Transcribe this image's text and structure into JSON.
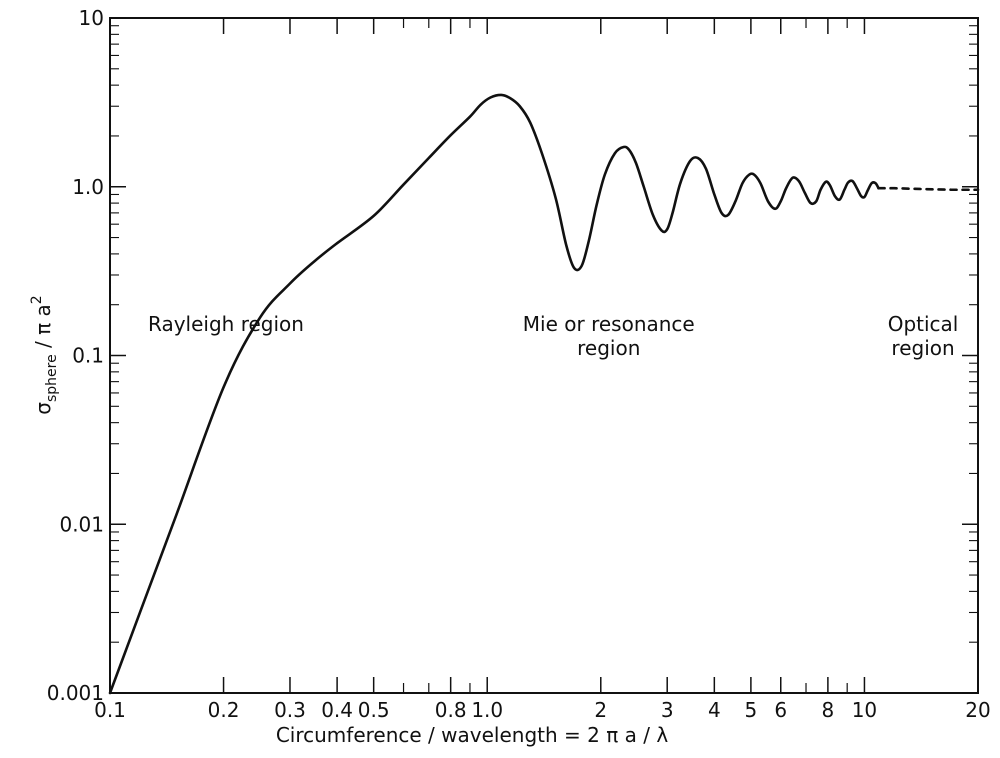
{
  "chart_data": {
    "type": "line",
    "title": "",
    "xlabel": "Circumference / wavelength = 2 π a / λ",
    "ylabel_main": "σ",
    "ylabel_sub": "sphere",
    "ylabel_rest": " / π a",
    "ylabel_sup": "2",
    "xscale": "log",
    "yscale": "log",
    "xlim": [
      0.1,
      20
    ],
    "ylim": [
      0.001,
      10
    ],
    "grid": false,
    "x_ticks": [
      {
        "value": 0.1,
        "label": "0.1"
      },
      {
        "value": 0.2,
        "label": "0.2"
      },
      {
        "value": 0.3,
        "label": "0.3"
      },
      {
        "value": 0.4,
        "label": "0.4"
      },
      {
        "value": 0.5,
        "label": "0.5"
      },
      {
        "value": 0.8,
        "label": "0.8"
      },
      {
        "value": 1.0,
        "label": "1.0"
      },
      {
        "value": 2,
        "label": "2"
      },
      {
        "value": 3,
        "label": "3"
      },
      {
        "value": 4,
        "label": "4"
      },
      {
        "value": 5,
        "label": "5"
      },
      {
        "value": 6,
        "label": "6"
      },
      {
        "value": 8,
        "label": "8"
      },
      {
        "value": 10,
        "label": "10"
      },
      {
        "value": 20,
        "label": "20"
      }
    ],
    "y_ticks": [
      {
        "value": 0.001,
        "label": "0.001"
      },
      {
        "value": 0.01,
        "label": "0.01"
      },
      {
        "value": 0.1,
        "label": "0.1"
      },
      {
        "value": 1.0,
        "label": "1.0"
      },
      {
        "value": 10,
        "label": "10"
      }
    ],
    "annotations": [
      {
        "lines": [
          "Rayleigh region"
        ],
        "x": 0.1,
        "y": 0.14,
        "anchor": "start"
      },
      {
        "lines": [
          "Mie or resonance",
          "region"
        ],
        "x": 2.1,
        "y": 0.14,
        "anchor": "middle"
      },
      {
        "lines": [
          "Optical",
          "region"
        ],
        "x": 14.3,
        "y": 0.14,
        "anchor": "middle"
      }
    ],
    "series": [
      {
        "style": "solid",
        "x": [
          0.1,
          0.12,
          0.15,
          0.2,
          0.25,
          0.3,
          0.35,
          0.4,
          0.5,
          0.6,
          0.7,
          0.8,
          0.9,
          0.96,
          1.02,
          1.09,
          1.15,
          1.22,
          1.3,
          1.4,
          1.52,
          1.62,
          1.7,
          1.78,
          1.86,
          1.95,
          2.05,
          2.18,
          2.3,
          2.38,
          2.48,
          2.6,
          2.75,
          2.9,
          3.0,
          3.1,
          3.25,
          3.45,
          3.62,
          3.8,
          4.0,
          4.18,
          4.35,
          4.55,
          4.75,
          4.95,
          5.1,
          5.3,
          5.55,
          5.8,
          6.0,
          6.2,
          6.45,
          6.7,
          6.95,
          7.2,
          7.45,
          7.65,
          7.9,
          8.1,
          8.35,
          8.6,
          8.85,
          9.05,
          9.3,
          9.55,
          9.8,
          10.0,
          10.2,
          10.45,
          10.7,
          10.9
        ],
        "y": [
          0.001,
          0.00299,
          0.0114,
          0.0648,
          0.168,
          0.267,
          0.365,
          0.463,
          0.672,
          1.03,
          1.48,
          2.02,
          2.6,
          3.06,
          3.38,
          3.5,
          3.35,
          3.0,
          2.4,
          1.55,
          0.85,
          0.45,
          0.33,
          0.34,
          0.48,
          0.78,
          1.18,
          1.58,
          1.72,
          1.65,
          1.38,
          1.0,
          0.68,
          0.55,
          0.56,
          0.7,
          1.05,
          1.42,
          1.48,
          1.28,
          0.9,
          0.7,
          0.68,
          0.82,
          1.05,
          1.18,
          1.18,
          1.05,
          0.82,
          0.74,
          0.82,
          0.98,
          1.13,
          1.08,
          0.92,
          0.8,
          0.82,
          0.96,
          1.07,
          1.02,
          0.88,
          0.84,
          0.96,
          1.06,
          1.08,
          0.98,
          0.88,
          0.87,
          0.95,
          1.05,
          1.05,
          0.98
        ]
      },
      {
        "style": "dashed",
        "x": [
          10.9,
          12,
          14,
          17,
          20
        ],
        "y": [
          0.98,
          0.98,
          0.97,
          0.96,
          0.96
        ]
      }
    ]
  }
}
